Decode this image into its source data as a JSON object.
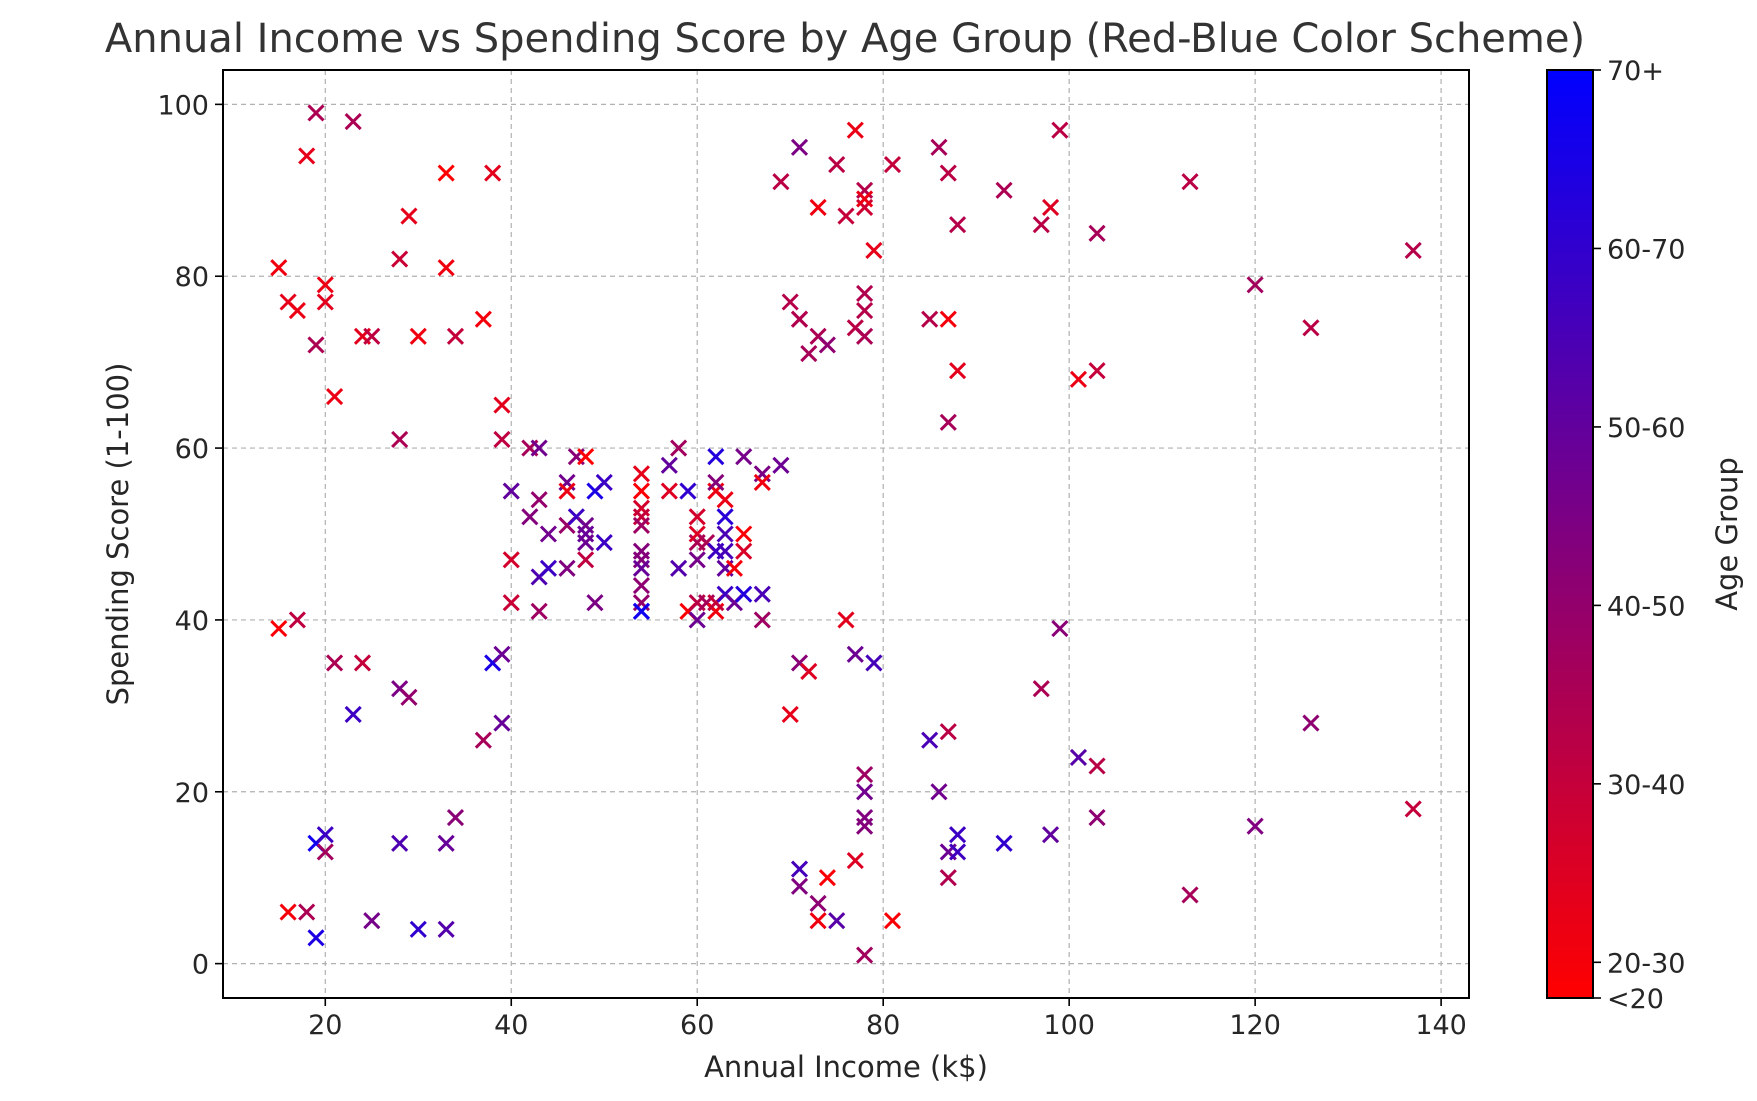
{
  "chart_data": {
    "type": "scatter",
    "title": "Annual Income vs Spending Score by Age Group (Red-Blue Color Scheme)",
    "xlabel": "Annual Income (k$)",
    "ylabel": "Spending Score (1-100)",
    "xlim": [
      9,
      143
    ],
    "ylim": [
      -4,
      104
    ],
    "xticks": [
      20,
      40,
      60,
      80,
      100,
      120,
      140
    ],
    "yticks": [
      0,
      20,
      40,
      60,
      80,
      100
    ],
    "grid": true,
    "marker": "x",
    "colormap": {
      "low": "#ff0000",
      "high": "#0000ff"
    },
    "colorbar": {
      "label": "Age Group",
      "ticks": [
        {
          "label": "<20",
          "value": 18
        },
        {
          "label": "20-30",
          "value": 20
        },
        {
          "label": "30-40",
          "value": 30
        },
        {
          "label": "40-50",
          "value": 40
        },
        {
          "label": "50-60",
          "value": 50
        },
        {
          "label": "60-70",
          "value": 60
        },
        {
          "label": "70+",
          "value": 70
        }
      ]
    },
    "points": [
      [
        15,
        39,
        19
      ],
      [
        15,
        81,
        21
      ],
      [
        16,
        6,
        20
      ],
      [
        16,
        77,
        23
      ],
      [
        17,
        40,
        31
      ],
      [
        17,
        76,
        22
      ],
      [
        18,
        6,
        35
      ],
      [
        18,
        94,
        23
      ],
      [
        19,
        3,
        64
      ],
      [
        19,
        72,
        35
      ],
      [
        19,
        14,
        67
      ],
      [
        19,
        99,
        35
      ],
      [
        20,
        15,
        58
      ],
      [
        20,
        77,
        24
      ],
      [
        20,
        13,
        37
      ],
      [
        20,
        79,
        22
      ],
      [
        21,
        35,
        35
      ],
      [
        21,
        66,
        22
      ],
      [
        23,
        29,
        58
      ],
      [
        23,
        98,
        35
      ],
      [
        24,
        35,
        30
      ],
      [
        24,
        73,
        24
      ],
      [
        25,
        5,
        46
      ],
      [
        25,
        73,
        31
      ],
      [
        28,
        14,
        54
      ],
      [
        28,
        82,
        29
      ],
      [
        28,
        32,
        45
      ],
      [
        28,
        61,
        35
      ],
      [
        29,
        31,
        40
      ],
      [
        29,
        87,
        23
      ],
      [
        30,
        4,
        60
      ],
      [
        30,
        73,
        21
      ],
      [
        33,
        4,
        53
      ],
      [
        33,
        92,
        18
      ],
      [
        33,
        14,
        49
      ],
      [
        33,
        81,
        21
      ],
      [
        34,
        17,
        42
      ],
      [
        34,
        73,
        30
      ],
      [
        37,
        26,
        36
      ],
      [
        37,
        75,
        20
      ],
      [
        38,
        35,
        65
      ],
      [
        38,
        92,
        24
      ],
      [
        39,
        36,
        48
      ],
      [
        39,
        61,
        31
      ],
      [
        39,
        28,
        49
      ],
      [
        39,
        65,
        24
      ],
      [
        40,
        55,
        50
      ],
      [
        40,
        47,
        27
      ],
      [
        40,
        42,
        29
      ],
      [
        42,
        52,
        43
      ],
      [
        42,
        60,
        36
      ],
      [
        43,
        54,
        40
      ],
      [
        43,
        60,
        47
      ],
      [
        43,
        45,
        54
      ],
      [
        43,
        41,
        38
      ],
      [
        44,
        50,
        47
      ],
      [
        44,
        46,
        58
      ],
      [
        46,
        51,
        39
      ],
      [
        46,
        46,
        44
      ],
      [
        46,
        56,
        47
      ],
      [
        46,
        55,
        22
      ],
      [
        47,
        52,
        58
      ],
      [
        47,
        59,
        42
      ],
      [
        48,
        51,
        47
      ],
      [
        48,
        59,
        18
      ],
      [
        48,
        47,
        31
      ],
      [
        48,
        50,
        49
      ],
      [
        48,
        49,
        48
      ],
      [
        49,
        55,
        65
      ],
      [
        49,
        42,
        45
      ],
      [
        50,
        56,
        58
      ],
      [
        50,
        49,
        58
      ],
      [
        54,
        47,
        43
      ],
      [
        54,
        53,
        27
      ],
      [
        54,
        48,
        43
      ],
      [
        54,
        52,
        30
      ],
      [
        54,
        42,
        40
      ],
      [
        54,
        51,
        38
      ],
      [
        54,
        55,
        19
      ],
      [
        54,
        41,
        63
      ],
      [
        54,
        44,
        41
      ],
      [
        54,
        57,
        23
      ],
      [
        54,
        46,
        49
      ],
      [
        54,
        41,
        67
      ],
      [
        57,
        58,
        50
      ],
      [
        57,
        55,
        25
      ],
      [
        58,
        60,
        37
      ],
      [
        58,
        46,
        53
      ],
      [
        59,
        55,
        60
      ],
      [
        59,
        41,
        19
      ],
      [
        60,
        49,
        35
      ],
      [
        60,
        40,
        48
      ],
      [
        60,
        42,
        32
      ],
      [
        60,
        52,
        27
      ],
      [
        60,
        47,
        46
      ],
      [
        60,
        50,
        25
      ],
      [
        61,
        42,
        36
      ],
      [
        61,
        49,
        35
      ],
      [
        62,
        41,
        21
      ],
      [
        62,
        48,
        58
      ],
      [
        62,
        59,
        63
      ],
      [
        62,
        55,
        22
      ],
      [
        62,
        56,
        43
      ],
      [
        62,
        42,
        30
      ],
      [
        63,
        50,
        55
      ],
      [
        63,
        46,
        50
      ],
      [
        63,
        43,
        58
      ],
      [
        63,
        48,
        56
      ],
      [
        63,
        52,
        62
      ],
      [
        63,
        54,
        22
      ],
      [
        64,
        42,
        48
      ],
      [
        64,
        46,
        20
      ],
      [
        65,
        48,
        26
      ],
      [
        65,
        50,
        19
      ],
      [
        65,
        43,
        63
      ],
      [
        65,
        59,
        46
      ],
      [
        67,
        43,
        55
      ],
      [
        67,
        57,
        45
      ],
      [
        67,
        56,
        21
      ],
      [
        67,
        40,
        38
      ],
      [
        69,
        58,
        48
      ],
      [
        69,
        91,
        32
      ],
      [
        70,
        29,
        23
      ],
      [
        70,
        77,
        33
      ],
      [
        71,
        35,
        42
      ],
      [
        71,
        95,
        45
      ],
      [
        71,
        11,
        56
      ],
      [
        71,
        75,
        33
      ],
      [
        71,
        9,
        44
      ],
      [
        71,
        75,
        34
      ],
      [
        72,
        34,
        25
      ],
      [
        72,
        71,
        36
      ],
      [
        73,
        5,
        21
      ],
      [
        73,
        88,
        21
      ],
      [
        73,
        7,
        41
      ],
      [
        73,
        73,
        35
      ],
      [
        74,
        10,
        19
      ],
      [
        74,
        72,
        41
      ],
      [
        75,
        5,
        52
      ],
      [
        75,
        93,
        32
      ],
      [
        76,
        40,
        24
      ],
      [
        76,
        87,
        30
      ],
      [
        77,
        12,
        25
      ],
      [
        77,
        97,
        22
      ],
      [
        77,
        36,
        48
      ],
      [
        77,
        74,
        32
      ],
      [
        78,
        22,
        38
      ],
      [
        78,
        90,
        33
      ],
      [
        78,
        17,
        44
      ],
      [
        78,
        88,
        28
      ],
      [
        78,
        20,
        47
      ],
      [
        78,
        76,
        33
      ],
      [
        78,
        16,
        43
      ],
      [
        78,
        89,
        22
      ],
      [
        78,
        1,
        37
      ],
      [
        78,
        78,
        34
      ],
      [
        78,
        73,
        35
      ],
      [
        79,
        35,
        56
      ],
      [
        79,
        83,
        23
      ],
      [
        81,
        5,
        19
      ],
      [
        81,
        93,
        30
      ],
      [
        85,
        26,
        55
      ],
      [
        85,
        75,
        33
      ],
      [
        86,
        20,
        47
      ],
      [
        86,
        95,
        36
      ],
      [
        87,
        27,
        32
      ],
      [
        87,
        63,
        36
      ],
      [
        87,
        13,
        48
      ],
      [
        87,
        75,
        20
      ],
      [
        87,
        10,
        34
      ],
      [
        87,
        92,
        32
      ],
      [
        88,
        13,
        57
      ],
      [
        88,
        86,
        33
      ],
      [
        88,
        15,
        58
      ],
      [
        88,
        69,
        24
      ],
      [
        93,
        14,
        60
      ],
      [
        93,
        90,
        35
      ],
      [
        97,
        32,
        35
      ],
      [
        97,
        86,
        32
      ],
      [
        98,
        15,
        50
      ],
      [
        98,
        88,
        25
      ],
      [
        99,
        39,
        42
      ],
      [
        99,
        97,
        32
      ],
      [
        101,
        24,
        52
      ],
      [
        101,
        68,
        22
      ],
      [
        103,
        17,
        41
      ],
      [
        103,
        85,
        36
      ],
      [
        103,
        23,
        32
      ],
      [
        103,
        69,
        30
      ],
      [
        113,
        8,
        36
      ],
      [
        113,
        91,
        32
      ],
      [
        120,
        16,
        44
      ],
      [
        120,
        79,
        37
      ],
      [
        126,
        28,
        41
      ],
      [
        126,
        74,
        32
      ],
      [
        137,
        18,
        30
      ],
      [
        137,
        83,
        33
      ]
    ]
  }
}
